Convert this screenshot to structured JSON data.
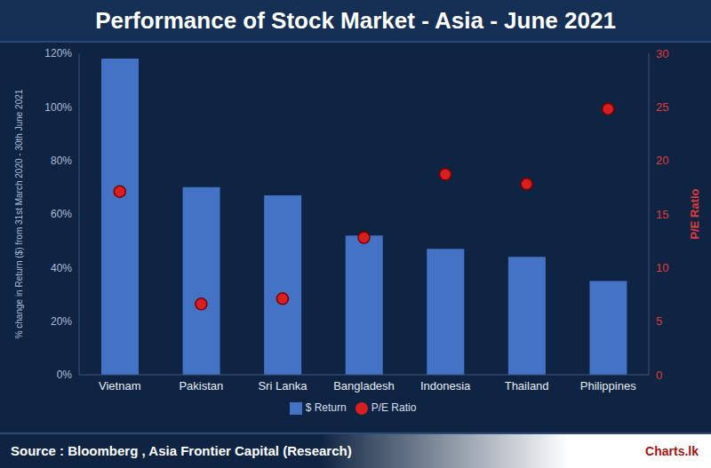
{
  "chart_data": {
    "type": "bar",
    "title": "Performance of Stock Market - Asia - June 2021",
    "y_label": "% change in Return ($) from 31st March 2020 - 30th June 2021",
    "y2_label": "P/E Ratio",
    "source": "Source : Bloomberg , Asia Frontier Capital (Research)",
    "logo": "Charts.lk",
    "categories": [
      "Vietnam",
      "Pakistan",
      "Sri Lanka",
      "Bangladesh",
      "Indonesia",
      "Thailand",
      "Philippines"
    ],
    "series": [
      {
        "name": "$ Return",
        "type": "bar",
        "color": "#4472c4",
        "values": [
          118,
          70,
          67,
          52,
          47,
          44,
          35
        ]
      },
      {
        "name": "P/E Ratio",
        "type": "scatter",
        "axis": "y2",
        "color": "#d81e1e",
        "marker": "circle",
        "values": [
          17.1,
          6.6,
          7.1,
          12.8,
          18.7,
          17.8,
          24.8
        ]
      }
    ],
    "ylim": [
      0,
      120
    ],
    "yticks": [
      {
        "value": 0,
        "label": "0%"
      },
      {
        "value": 20,
        "label": "20%"
      },
      {
        "value": 40,
        "label": "40%"
      },
      {
        "value": 60,
        "label": "60%"
      },
      {
        "value": 80,
        "label": "80%"
      },
      {
        "value": 100,
        "label": "100%"
      },
      {
        "value": 120,
        "label": "120%"
      }
    ],
    "y2lim": [
      0,
      30
    ],
    "y2ticks": [
      0,
      5,
      10,
      15,
      20,
      25,
      30
    ],
    "legend": "bottom",
    "grid": false
  }
}
